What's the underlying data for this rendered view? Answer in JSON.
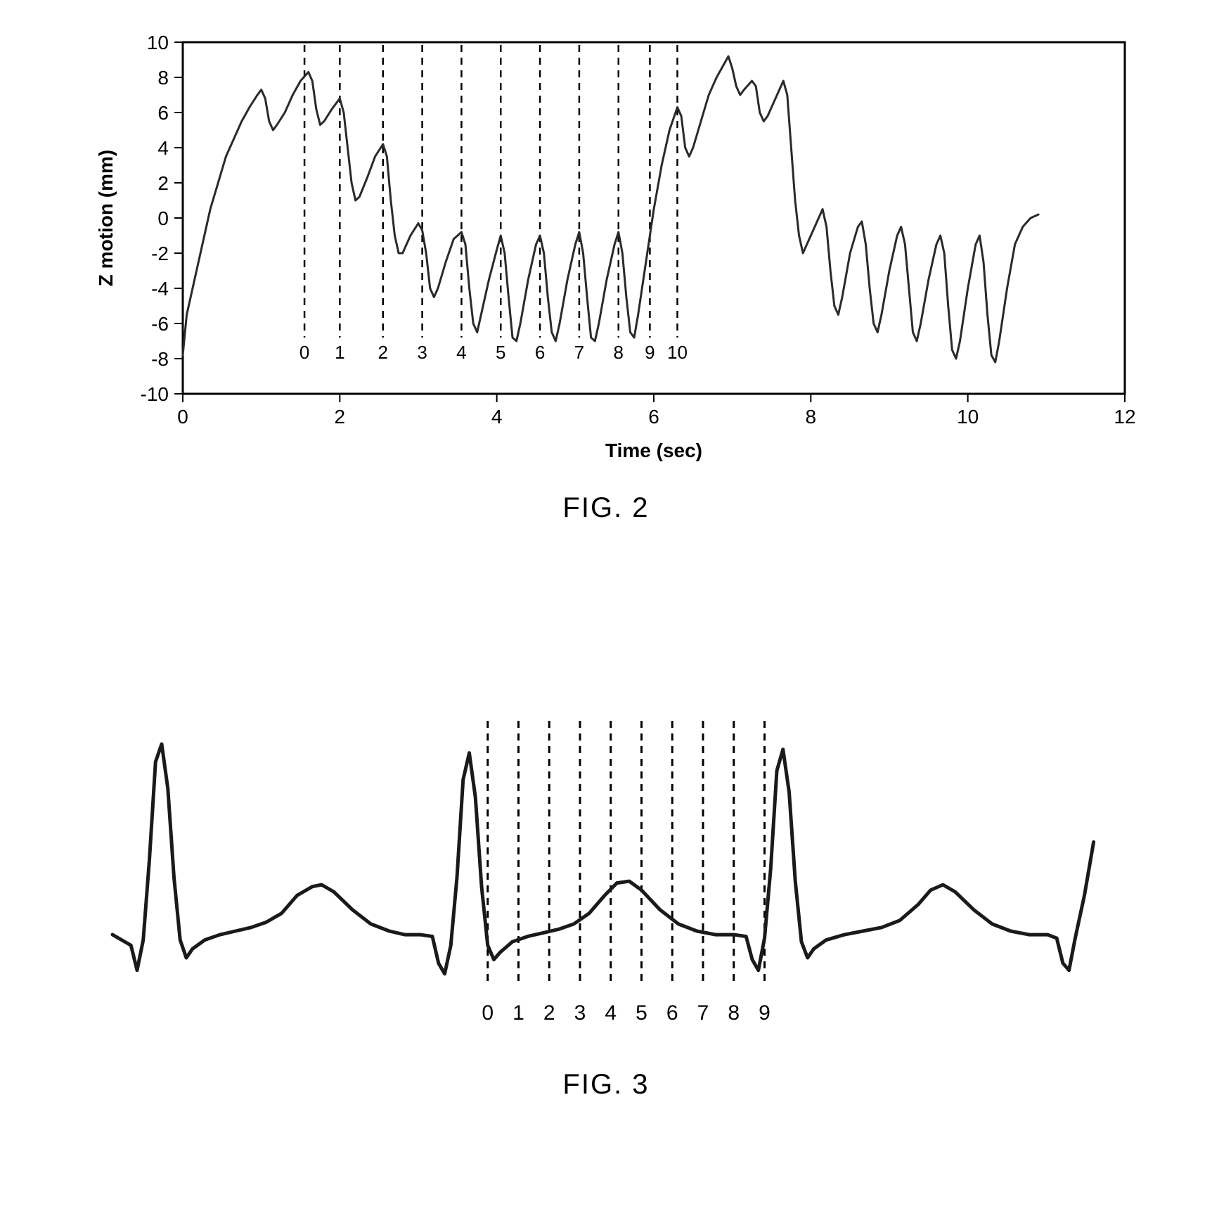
{
  "fig2": {
    "caption": "FIG. 2",
    "caption_fontsize": 40,
    "type": "line",
    "xlabel": "Time (sec)",
    "ylabel": "Z motion (mm)",
    "label_fontsize": 28,
    "label_fontweight": "bold",
    "tick_fontsize": 28,
    "xlim": [
      0,
      12
    ],
    "ylim": [
      -10,
      10
    ],
    "xticks": [
      0,
      2,
      4,
      6,
      8,
      10,
      12
    ],
    "yticks": [
      -10,
      -8,
      -6,
      -4,
      -2,
      0,
      2,
      4,
      6,
      8,
      10
    ],
    "background_color": "#ffffff",
    "axis_color": "#000000",
    "tick_color": "#000000",
    "line_color": "#2a2a2a",
    "line_width": 3,
    "marker_line_color": "#000000",
    "marker_line_width": 2.5,
    "marker_dash": "10 8",
    "marker_label_fontsize": 26,
    "series": [
      [
        0.0,
        -7.8
      ],
      [
        0.05,
        -5.5
      ],
      [
        0.15,
        -3.5
      ],
      [
        0.25,
        -1.5
      ],
      [
        0.35,
        0.5
      ],
      [
        0.45,
        2.0
      ],
      [
        0.55,
        3.5
      ],
      [
        0.65,
        4.5
      ],
      [
        0.75,
        5.5
      ],
      [
        0.85,
        6.3
      ],
      [
        0.95,
        7.0
      ],
      [
        1.0,
        7.3
      ],
      [
        1.05,
        6.8
      ],
      [
        1.1,
        5.5
      ],
      [
        1.15,
        5.0
      ],
      [
        1.2,
        5.3
      ],
      [
        1.3,
        6.0
      ],
      [
        1.4,
        7.0
      ],
      [
        1.5,
        7.8
      ],
      [
        1.6,
        8.3
      ],
      [
        1.65,
        7.8
      ],
      [
        1.7,
        6.2
      ],
      [
        1.75,
        5.3
      ],
      [
        1.8,
        5.5
      ],
      [
        1.9,
        6.2
      ],
      [
        2.0,
        6.8
      ],
      [
        2.05,
        6.0
      ],
      [
        2.1,
        4.0
      ],
      [
        2.15,
        2.0
      ],
      [
        2.2,
        1.0
      ],
      [
        2.25,
        1.2
      ],
      [
        2.35,
        2.3
      ],
      [
        2.45,
        3.5
      ],
      [
        2.55,
        4.2
      ],
      [
        2.6,
        3.5
      ],
      [
        2.65,
        1.0
      ],
      [
        2.7,
        -1.0
      ],
      [
        2.75,
        -2.0
      ],
      [
        2.8,
        -2.0
      ],
      [
        2.9,
        -1.0
      ],
      [
        3.0,
        -0.3
      ],
      [
        3.05,
        -0.7
      ],
      [
        3.1,
        -2.0
      ],
      [
        3.15,
        -4.0
      ],
      [
        3.2,
        -4.5
      ],
      [
        3.25,
        -4.0
      ],
      [
        3.35,
        -2.5
      ],
      [
        3.45,
        -1.2
      ],
      [
        3.55,
        -0.8
      ],
      [
        3.6,
        -1.5
      ],
      [
        3.65,
        -4.0
      ],
      [
        3.7,
        -6.0
      ],
      [
        3.75,
        -6.5
      ],
      [
        3.8,
        -5.5
      ],
      [
        3.9,
        -3.5
      ],
      [
        4.0,
        -1.8
      ],
      [
        4.05,
        -1.0
      ],
      [
        4.1,
        -2.0
      ],
      [
        4.15,
        -4.5
      ],
      [
        4.2,
        -6.8
      ],
      [
        4.25,
        -7.0
      ],
      [
        4.3,
        -6.0
      ],
      [
        4.4,
        -3.5
      ],
      [
        4.5,
        -1.5
      ],
      [
        4.55,
        -1.0
      ],
      [
        4.6,
        -2.0
      ],
      [
        4.65,
        -4.5
      ],
      [
        4.7,
        -6.5
      ],
      [
        4.75,
        -7.0
      ],
      [
        4.8,
        -6.0
      ],
      [
        4.9,
        -3.5
      ],
      [
        5.0,
        -1.5
      ],
      [
        5.05,
        -0.8
      ],
      [
        5.1,
        -2.0
      ],
      [
        5.15,
        -4.5
      ],
      [
        5.2,
        -6.8
      ],
      [
        5.25,
        -7.0
      ],
      [
        5.3,
        -6.0
      ],
      [
        5.4,
        -3.5
      ],
      [
        5.5,
        -1.5
      ],
      [
        5.55,
        -0.8
      ],
      [
        5.6,
        -2.0
      ],
      [
        5.65,
        -4.5
      ],
      [
        5.7,
        -6.5
      ],
      [
        5.75,
        -6.8
      ],
      [
        5.8,
        -5.5
      ],
      [
        5.9,
        -2.5
      ],
      [
        6.0,
        0.5
      ],
      [
        6.1,
        3.0
      ],
      [
        6.2,
        5.0
      ],
      [
        6.3,
        6.3
      ],
      [
        6.35,
        5.8
      ],
      [
        6.4,
        4.0
      ],
      [
        6.45,
        3.5
      ],
      [
        6.5,
        4.0
      ],
      [
        6.6,
        5.5
      ],
      [
        6.7,
        7.0
      ],
      [
        6.8,
        8.0
      ],
      [
        6.9,
        8.8
      ],
      [
        6.95,
        9.2
      ],
      [
        7.0,
        8.5
      ],
      [
        7.05,
        7.5
      ],
      [
        7.1,
        7.0
      ],
      [
        7.15,
        7.3
      ],
      [
        7.25,
        7.8
      ],
      [
        7.3,
        7.5
      ],
      [
        7.35,
        6.0
      ],
      [
        7.4,
        5.5
      ],
      [
        7.45,
        5.8
      ],
      [
        7.55,
        6.8
      ],
      [
        7.65,
        7.8
      ],
      [
        7.7,
        7.0
      ],
      [
        7.75,
        4.0
      ],
      [
        7.8,
        1.0
      ],
      [
        7.85,
        -1.0
      ],
      [
        7.9,
        -2.0
      ],
      [
        8.0,
        -1.0
      ],
      [
        8.1,
        0.0
      ],
      [
        8.15,
        0.5
      ],
      [
        8.2,
        -0.5
      ],
      [
        8.25,
        -3.0
      ],
      [
        8.3,
        -5.0
      ],
      [
        8.35,
        -5.5
      ],
      [
        8.4,
        -4.5
      ],
      [
        8.5,
        -2.0
      ],
      [
        8.6,
        -0.5
      ],
      [
        8.65,
        -0.2
      ],
      [
        8.7,
        -1.5
      ],
      [
        8.75,
        -4.0
      ],
      [
        8.8,
        -6.0
      ],
      [
        8.85,
        -6.5
      ],
      [
        8.9,
        -5.5
      ],
      [
        9.0,
        -3.0
      ],
      [
        9.1,
        -1.0
      ],
      [
        9.15,
        -0.5
      ],
      [
        9.2,
        -1.5
      ],
      [
        9.25,
        -4.0
      ],
      [
        9.3,
        -6.5
      ],
      [
        9.35,
        -7.0
      ],
      [
        9.4,
        -6.0
      ],
      [
        9.5,
        -3.5
      ],
      [
        9.6,
        -1.5
      ],
      [
        9.65,
        -1.0
      ],
      [
        9.7,
        -2.0
      ],
      [
        9.75,
        -5.0
      ],
      [
        9.8,
        -7.5
      ],
      [
        9.85,
        -8.0
      ],
      [
        9.9,
        -7.0
      ],
      [
        10.0,
        -4.0
      ],
      [
        10.1,
        -1.5
      ],
      [
        10.15,
        -1.0
      ],
      [
        10.2,
        -2.5
      ],
      [
        10.25,
        -5.5
      ],
      [
        10.3,
        -7.8
      ],
      [
        10.35,
        -8.2
      ],
      [
        10.4,
        -7.0
      ],
      [
        10.5,
        -4.0
      ],
      [
        10.6,
        -1.5
      ],
      [
        10.7,
        -0.5
      ],
      [
        10.8,
        0.0
      ],
      [
        10.9,
        0.2
      ]
    ],
    "markers": [
      {
        "x": 1.55,
        "label": "0"
      },
      {
        "x": 2.0,
        "label": "1"
      },
      {
        "x": 2.55,
        "label": "2"
      },
      {
        "x": 3.05,
        "label": "3"
      },
      {
        "x": 3.55,
        "label": "4"
      },
      {
        "x": 4.05,
        "label": "5"
      },
      {
        "x": 4.55,
        "label": "6"
      },
      {
        "x": 5.05,
        "label": "7"
      },
      {
        "x": 5.55,
        "label": "8"
      },
      {
        "x": 5.95,
        "label": "9"
      },
      {
        "x": 6.3,
        "label": "10"
      }
    ]
  },
  "fig3": {
    "caption": "FIG. 3",
    "caption_fontsize": 40,
    "type": "line",
    "background_color": "#ffffff",
    "line_color": "#1a1a1a",
    "line_width": 5,
    "marker_line_color": "#000000",
    "marker_line_width": 3,
    "marker_dash": "10 8",
    "marker_label_fontsize": 30,
    "xlim": [
      0,
      320
    ],
    "ylim": [
      -30,
      120
    ],
    "series": [
      [
        0,
        -2
      ],
      [
        6,
        -8
      ],
      [
        8,
        -22
      ],
      [
        10,
        -5
      ],
      [
        12,
        40
      ],
      [
        14,
        95
      ],
      [
        16,
        105
      ],
      [
        18,
        80
      ],
      [
        20,
        30
      ],
      [
        22,
        -5
      ],
      [
        24,
        -15
      ],
      [
        26,
        -10
      ],
      [
        30,
        -5
      ],
      [
        35,
        -2
      ],
      [
        40,
        0
      ],
      [
        45,
        2
      ],
      [
        50,
        5
      ],
      [
        55,
        10
      ],
      [
        60,
        20
      ],
      [
        65,
        25
      ],
      [
        68,
        26
      ],
      [
        72,
        22
      ],
      [
        78,
        12
      ],
      [
        84,
        4
      ],
      [
        90,
        0
      ],
      [
        95,
        -2
      ],
      [
        100,
        -2
      ],
      [
        104,
        -3
      ],
      [
        106,
        -18
      ],
      [
        108,
        -24
      ],
      [
        110,
        -8
      ],
      [
        112,
        30
      ],
      [
        114,
        85
      ],
      [
        116,
        100
      ],
      [
        118,
        75
      ],
      [
        120,
        25
      ],
      [
        122,
        -8
      ],
      [
        124,
        -16
      ],
      [
        126,
        -12
      ],
      [
        130,
        -6
      ],
      [
        135,
        -3
      ],
      [
        140,
        -1
      ],
      [
        145,
        1
      ],
      [
        150,
        4
      ],
      [
        155,
        10
      ],
      [
        160,
        20
      ],
      [
        164,
        27
      ],
      [
        168,
        28
      ],
      [
        172,
        23
      ],
      [
        178,
        12
      ],
      [
        184,
        4
      ],
      [
        190,
        0
      ],
      [
        196,
        -2
      ],
      [
        202,
        -2
      ],
      [
        206,
        -3
      ],
      [
        208,
        -16
      ],
      [
        210,
        -22
      ],
      [
        212,
        -4
      ],
      [
        214,
        35
      ],
      [
        216,
        90
      ],
      [
        218,
        102
      ],
      [
        220,
        78
      ],
      [
        222,
        28
      ],
      [
        224,
        -6
      ],
      [
        226,
        -15
      ],
      [
        228,
        -10
      ],
      [
        232,
        -5
      ],
      [
        238,
        -2
      ],
      [
        244,
        0
      ],
      [
        250,
        2
      ],
      [
        256,
        6
      ],
      [
        262,
        15
      ],
      [
        266,
        23
      ],
      [
        270,
        26
      ],
      [
        274,
        22
      ],
      [
        280,
        12
      ],
      [
        286,
        4
      ],
      [
        292,
        0
      ],
      [
        298,
        -2
      ],
      [
        304,
        -2
      ],
      [
        307,
        -4
      ],
      [
        309,
        -18
      ],
      [
        311,
        -22
      ],
      [
        313,
        -4
      ],
      [
        316,
        20
      ],
      [
        319,
        50
      ]
    ],
    "markers": [
      {
        "x": 122,
        "label": "0"
      },
      {
        "x": 132,
        "label": "1"
      },
      {
        "x": 142,
        "label": "2"
      },
      {
        "x": 152,
        "label": "3"
      },
      {
        "x": 162,
        "label": "4"
      },
      {
        "x": 172,
        "label": "5"
      },
      {
        "x": 182,
        "label": "6"
      },
      {
        "x": 192,
        "label": "7"
      },
      {
        "x": 202,
        "label": "8"
      },
      {
        "x": 212,
        "label": "9"
      }
    ]
  }
}
